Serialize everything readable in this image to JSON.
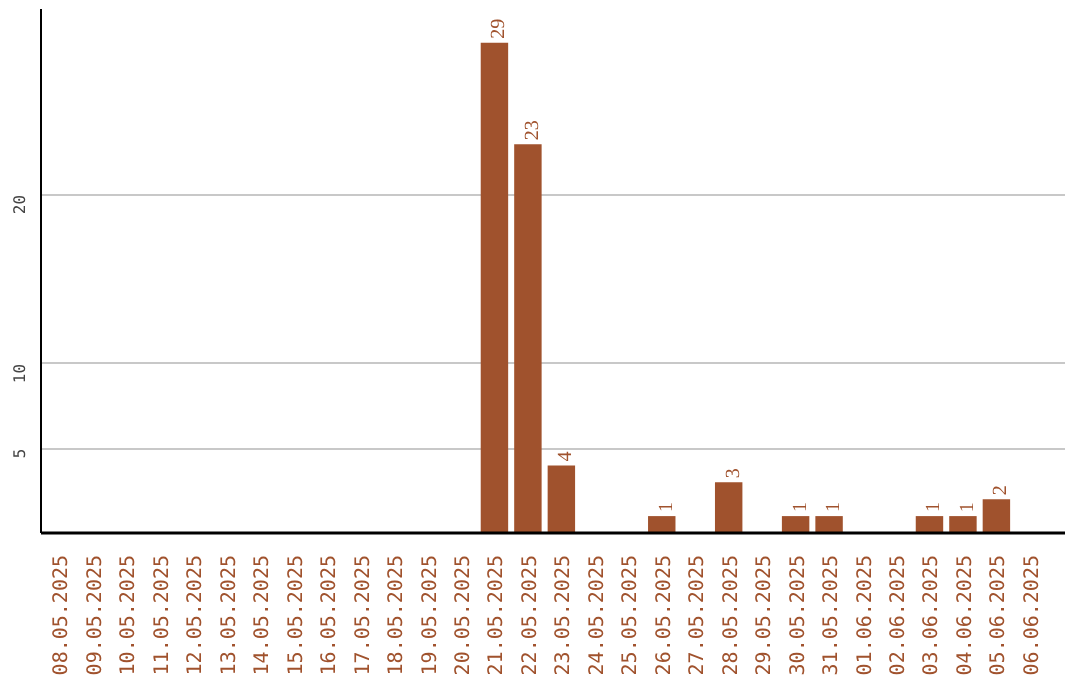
{
  "chart_data": {
    "type": "bar",
    "categories": [
      "08.05.2025",
      "09.05.2025",
      "10.05.2025",
      "11.05.2025",
      "12.05.2025",
      "13.05.2025",
      "14.05.2025",
      "15.05.2025",
      "16.05.2025",
      "17.05.2025",
      "18.05.2025",
      "19.05.2025",
      "20.05.2025",
      "21.05.2025",
      "22.05.2025",
      "23.05.2025",
      "24.05.2025",
      "25.05.2025",
      "26.05.2025",
      "27.05.2025",
      "28.05.2025",
      "29.05.2025",
      "30.05.2025",
      "31.05.2025",
      "01.06.2025",
      "02.06.2025",
      "03.06.2025",
      "04.06.2025",
      "05.06.2025",
      "06.06.2025"
    ],
    "values": [
      0,
      0,
      0,
      0,
      0,
      0,
      0,
      0,
      0,
      0,
      0,
      0,
      0,
      29,
      23,
      4,
      0,
      0,
      1,
      0,
      3,
      0,
      1,
      1,
      0,
      0,
      1,
      1,
      2,
      0
    ],
    "value_labels": [
      null,
      null,
      null,
      null,
      null,
      null,
      null,
      null,
      null,
      null,
      null,
      null,
      null,
      "29",
      "23",
      "4",
      null,
      null,
      "1",
      null,
      "3",
      null,
      "1",
      "1",
      null,
      null,
      "1",
      "1",
      "2",
      null
    ],
    "color": "#a0522d",
    "ylim": [
      0,
      31
    ],
    "yticks": [
      5,
      10,
      20
    ],
    "grid": "y"
  }
}
